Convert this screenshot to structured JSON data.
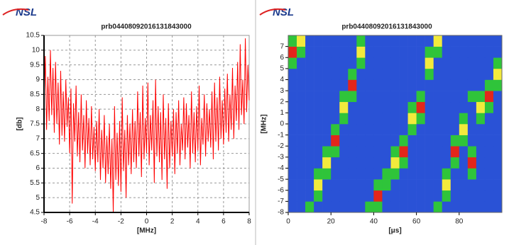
{
  "brand": "NSL",
  "chart_data": [
    {
      "type": "line",
      "title": "prb04408092016131843000",
      "xlabel": "[MHz]",
      "ylabel": "[db]",
      "color": "#ff0000",
      "grid": true,
      "xlim": [
        -8,
        8
      ],
      "ylim": [
        4.5,
        10.5
      ],
      "xticks": [
        -8,
        -6,
        -4,
        -2,
        0,
        2,
        4,
        6,
        8
      ],
      "yticks": [
        4.5,
        5,
        5.5,
        6,
        6.5,
        7,
        7.5,
        8,
        8.5,
        9,
        9.5,
        10,
        10.5
      ],
      "x": [
        -8,
        -7.9,
        -7.8,
        -7.7,
        -7.6,
        -7.5,
        -7.4,
        -7.3,
        -7.2,
        -7.1,
        -7,
        -6.9,
        -6.8,
        -6.7,
        -6.6,
        -6.5,
        -6.4,
        -6.3,
        -6.2,
        -6.1,
        -6,
        -5.9,
        -5.8,
        -5.7,
        -5.6,
        -5.5,
        -5.4,
        -5.3,
        -5.2,
        -5.1,
        -5,
        -4.9,
        -4.8,
        -4.7,
        -4.6,
        -4.5,
        -4.4,
        -4.3,
        -4.2,
        -4.1,
        -4,
        -3.9,
        -3.8,
        -3.7,
        -3.6,
        -3.5,
        -3.4,
        -3.3,
        -3.2,
        -3.1,
        -3,
        -2.9,
        -2.8,
        -2.7,
        -2.6,
        -2.5,
        -2.4,
        -2.3,
        -2.2,
        -2.1,
        -2,
        -1.9,
        -1.8,
        -1.7,
        -1.6,
        -1.5,
        -1.4,
        -1.3,
        -1.2,
        -1.1,
        -1,
        -0.9,
        -0.8,
        -0.7,
        -0.6,
        -0.5,
        -0.4,
        -0.3,
        -0.2,
        -0.1,
        0,
        0.1,
        0.2,
        0.3,
        0.4,
        0.5,
        0.6,
        0.7,
        0.8,
        0.9,
        1,
        1.1,
        1.2,
        1.3,
        1.4,
        1.5,
        1.6,
        1.7,
        1.8,
        1.9,
        2,
        2.1,
        2.2,
        2.3,
        2.4,
        2.5,
        2.6,
        2.7,
        2.8,
        2.9,
        3,
        3.1,
        3.2,
        3.3,
        3.4,
        3.5,
        3.6,
        3.7,
        3.8,
        3.9,
        4,
        4.1,
        4.2,
        4.3,
        4.4,
        4.5,
        4.6,
        4.7,
        4.8,
        4.9,
        5,
        5.1,
        5.2,
        5.3,
        5.4,
        5.5,
        5.6,
        5.7,
        5.8,
        5.9,
        6,
        6.1,
        6.2,
        6.3,
        6.4,
        6.5,
        6.6,
        6.7,
        6.8,
        6.9,
        7,
        7.1,
        7.2,
        7.3,
        7.4,
        7.5,
        7.6,
        7.7,
        7.8,
        7.9,
        8
      ],
      "values": [
        8.2,
        9.8,
        7.3,
        9.1,
        7.6,
        10.0,
        7.8,
        9.4,
        7.2,
        9.6,
        7.5,
        8.9,
        6.8,
        9.3,
        7.1,
        8.6,
        6.9,
        9.0,
        7.4,
        8.4,
        6.5,
        8.7,
        4.8,
        8.2,
        6.9,
        8.8,
        6.4,
        7.9,
        6.2,
        8.5,
        6.6,
        7.8,
        6.0,
        8.3,
        6.5,
        7.7,
        6.1,
        8.1,
        6.3,
        7.4,
        5.9,
        7.6,
        6.2,
        8.0,
        5.6,
        7.3,
        6.0,
        7.8,
        5.5,
        7.1,
        5.8,
        7.5,
        5.3,
        7.0,
        4.5,
        8.1,
        5.6,
        7.2,
        5.4,
        7.6,
        5.2,
        8.4,
        5.9,
        7.3,
        5.0,
        7.8,
        6.1,
        7.5,
        5.8,
        8.0,
        6.2,
        7.6,
        6.0,
        8.6,
        6.4,
        7.9,
        5.7,
        8.8,
        6.3,
        7.7,
        6.5,
        8.9,
        6.1,
        7.8,
        6.6,
        8.3,
        5.5,
        9.0,
        6.4,
        8.1,
        6.2,
        7.9,
        5.6,
        8.5,
        6.3,
        7.7,
        5.3,
        8.2,
        6.0,
        7.6,
        6.4,
        8.0,
        5.8,
        7.9,
        6.5,
        8.3,
        6.1,
        7.5,
        6.6,
        8.4,
        6.3,
        8.2,
        6.7,
        7.8,
        6.0,
        8.6,
        6.5,
        7.9,
        6.2,
        8.1,
        6.6,
        8.8,
        6.1,
        7.7,
        6.8,
        8.5,
        6.4,
        8.2,
        6.9,
        8.0,
        6.7,
        8.6,
        6.3,
        8.9,
        6.9,
        8.4,
        6.6,
        9.1,
        7.0,
        8.3,
        6.8,
        8.7,
        7.2,
        9.2,
        6.9,
        8.5,
        7.3,
        9.4,
        7.0,
        8.8,
        7.6,
        9.6,
        7.3,
        10.2,
        7.8,
        9.0,
        7.5,
        10.4,
        7.9,
        9.5,
        8.3
      ]
    },
    {
      "type": "heatmap",
      "title": "prb04408092016131843000",
      "xlabel": "[μs]",
      "ylabel": "[MHz]",
      "colors": [
        "#2a52d6",
        "#2fc43a",
        "#f2ea3c",
        "#e3261b"
      ],
      "xlim": [
        0,
        100
      ],
      "ylim": [
        -8,
        8
      ],
      "xticks": [
        0,
        20,
        40,
        60,
        80
      ],
      "yticks": [
        -8,
        -7,
        -6,
        -5,
        -4,
        -3,
        -2,
        -1,
        0,
        1,
        2,
        3,
        4,
        5,
        6,
        7
      ],
      "x": [
        0,
        4,
        8,
        12,
        16,
        20,
        24,
        28,
        32,
        36,
        40,
        44,
        48,
        52,
        56,
        60,
        64,
        68,
        72,
        76,
        80,
        84,
        88,
        92,
        96
      ],
      "y": [
        -8,
        -7,
        -6,
        -5,
        -4,
        -3,
        -2,
        -1,
        0,
        1,
        2,
        3,
        4,
        5,
        6,
        7
      ],
      "values": [
        [
          0,
          0,
          1,
          0,
          0,
          0,
          0,
          0,
          0,
          1,
          1,
          0,
          0,
          0,
          0,
          0,
          0,
          1,
          0,
          0,
          0,
          0,
          0,
          0,
          0
        ],
        [
          0,
          0,
          0,
          1,
          0,
          0,
          0,
          0,
          0,
          0,
          3,
          0,
          0,
          0,
          0,
          0,
          0,
          0,
          1,
          0,
          0,
          0,
          0,
          0,
          0
        ],
        [
          0,
          0,
          0,
          2,
          0,
          0,
          0,
          0,
          0,
          0,
          1,
          1,
          0,
          0,
          0,
          0,
          0,
          0,
          2,
          0,
          0,
          0,
          0,
          0,
          0
        ],
        [
          0,
          0,
          0,
          1,
          1,
          0,
          0,
          0,
          0,
          0,
          0,
          1,
          1,
          0,
          0,
          0,
          0,
          0,
          1,
          0,
          0,
          1,
          0,
          0,
          0
        ],
        [
          0,
          0,
          0,
          0,
          2,
          0,
          0,
          0,
          0,
          0,
          0,
          0,
          2,
          1,
          0,
          0,
          0,
          0,
          0,
          1,
          0,
          3,
          0,
          0,
          0
        ],
        [
          0,
          0,
          0,
          0,
          1,
          1,
          0,
          0,
          0,
          0,
          0,
          0,
          1,
          3,
          0,
          0,
          0,
          0,
          0,
          3,
          0,
          1,
          0,
          0,
          0
        ],
        [
          0,
          0,
          0,
          0,
          0,
          3,
          0,
          0,
          0,
          0,
          0,
          0,
          0,
          1,
          0,
          0,
          0,
          0,
          0,
          1,
          1,
          0,
          0,
          0,
          0
        ],
        [
          0,
          0,
          0,
          0,
          0,
          1,
          0,
          0,
          0,
          0,
          0,
          0,
          0,
          0,
          1,
          0,
          0,
          0,
          0,
          0,
          2,
          0,
          0,
          0,
          0
        ],
        [
          0,
          0,
          0,
          0,
          0,
          0,
          1,
          0,
          0,
          0,
          0,
          0,
          0,
          0,
          2,
          1,
          0,
          0,
          0,
          0,
          1,
          0,
          1,
          0,
          0
        ],
        [
          0,
          0,
          0,
          0,
          0,
          0,
          2,
          0,
          0,
          0,
          0,
          0,
          0,
          0,
          1,
          3,
          0,
          0,
          0,
          0,
          0,
          0,
          2,
          1,
          0
        ],
        [
          0,
          0,
          0,
          0,
          0,
          0,
          1,
          1,
          0,
          0,
          0,
          0,
          0,
          0,
          0,
          1,
          0,
          0,
          0,
          0,
          0,
          1,
          1,
          3,
          0
        ],
        [
          0,
          0,
          0,
          0,
          0,
          0,
          0,
          3,
          0,
          0,
          0,
          0,
          0,
          0,
          0,
          0,
          0,
          0,
          0,
          0,
          0,
          0,
          0,
          1,
          1
        ],
        [
          0,
          0,
          0,
          0,
          0,
          0,
          0,
          1,
          0,
          0,
          0,
          0,
          0,
          0,
          0,
          0,
          1,
          0,
          0,
          0,
          0,
          0,
          0,
          0,
          2
        ],
        [
          1,
          0,
          0,
          0,
          0,
          0,
          0,
          0,
          1,
          0,
          0,
          0,
          0,
          0,
          0,
          0,
          2,
          0,
          0,
          0,
          0,
          0,
          0,
          0,
          1
        ],
        [
          3,
          1,
          0,
          0,
          0,
          0,
          0,
          0,
          2,
          0,
          0,
          0,
          0,
          0,
          0,
          0,
          1,
          1,
          0,
          0,
          0,
          0,
          0,
          0,
          0
        ],
        [
          1,
          2,
          0,
          0,
          0,
          0,
          0,
          0,
          1,
          0,
          0,
          0,
          0,
          0,
          0,
          0,
          0,
          2,
          0,
          0,
          0,
          0,
          0,
          0,
          0
        ]
      ]
    }
  ]
}
